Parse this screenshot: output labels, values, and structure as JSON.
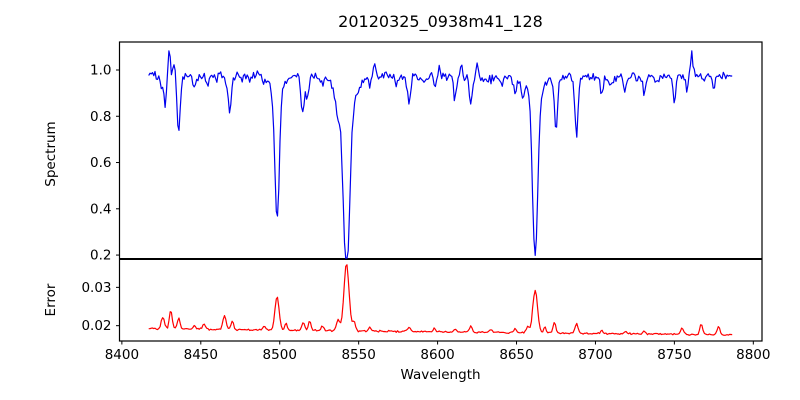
{
  "chart_data": {
    "type": "line",
    "title": "20120325_0938m41_128",
    "xlabel": "Wavelength",
    "xlim": [
      8398.5,
      8805.5
    ],
    "x_ticks": [
      8400,
      8450,
      8500,
      8550,
      8600,
      8650,
      8700,
      8750,
      8800
    ],
    "x_tick_labels": [
      "8400",
      "8450",
      "8500",
      "8550",
      "8600",
      "8650",
      "8700",
      "8750",
      "8800"
    ],
    "wavelength_range": [
      8417,
      8787
    ],
    "background_color": "#ffffff",
    "axis_color": "#000000",
    "grid": false,
    "legend": "none",
    "panels": [
      {
        "ylabel": "Spectrum",
        "line_color": "#0000ee",
        "ylim": [
          0.183,
          1.121
        ],
        "y_ticks": [
          1.0,
          0.8,
          0.6,
          0.4,
          0.2
        ],
        "y_tick_labels": [
          "1.0",
          "0.8",
          "0.6",
          "0.4",
          "0.2"
        ],
        "continuum": 0.972,
        "noise_amplitude": 0.024,
        "description": "Normalized stellar spectrum with Ca II triplet absorption lines at 8498, 8542, 8662",
        "absorption_features": [
          {
            "wl": 8425.0,
            "value": 0.91,
            "sigma": 0.8
          },
          {
            "wl": 8427.5,
            "value": 0.84,
            "sigma": 0.9
          },
          {
            "wl": 8436.0,
            "value": 0.72,
            "sigma": 1.0
          },
          {
            "wl": 8446.0,
            "value": 0.92,
            "sigma": 0.9
          },
          {
            "wl": 8454.0,
            "value": 0.93,
            "sigma": 0.9
          },
          {
            "wl": 8460.0,
            "value": 0.95,
            "sigma": 0.8
          },
          {
            "wl": 8466.0,
            "value": 0.92,
            "sigma": 0.8
          },
          {
            "wl": 8468.5,
            "value": 0.82,
            "sigma": 0.9
          },
          {
            "wl": 8476.0,
            "value": 0.95,
            "sigma": 0.8
          },
          {
            "wl": 8481.0,
            "value": 0.95,
            "sigma": 0.8
          },
          {
            "wl": 8490.0,
            "value": 0.94,
            "sigma": 0.8
          },
          {
            "wl": 8498.3,
            "value": 0.44,
            "sigma": 1.4
          },
          {
            "wl": 8498.3,
            "value": 0.89,
            "sigma": 4.0
          },
          {
            "wl": 8514.5,
            "value": 0.8,
            "sigma": 1.0
          },
          {
            "wl": 8517.5,
            "value": 0.86,
            "sigma": 0.8
          },
          {
            "wl": 8527.0,
            "value": 0.94,
            "sigma": 0.9
          },
          {
            "wl": 8536.5,
            "value": 0.88,
            "sigma": 1.2
          },
          {
            "wl": 8542.3,
            "value": 0.23,
            "sigma": 2.0
          },
          {
            "wl": 8542.3,
            "value": 0.85,
            "sigma": 6.0
          },
          {
            "wl": 8557.0,
            "value": 0.94,
            "sigma": 0.8
          },
          {
            "wl": 8574.0,
            "value": 0.93,
            "sigma": 0.9
          },
          {
            "wl": 8582.0,
            "value": 0.86,
            "sigma": 1.0
          },
          {
            "wl": 8592.0,
            "value": 0.95,
            "sigma": 0.8
          },
          {
            "wl": 8598.0,
            "value": 0.94,
            "sigma": 0.8
          },
          {
            "wl": 8611.0,
            "value": 0.88,
            "sigma": 0.9
          },
          {
            "wl": 8621.0,
            "value": 0.85,
            "sigma": 0.9
          },
          {
            "wl": 8634.0,
            "value": 0.96,
            "sigma": 0.8
          },
          {
            "wl": 8641.0,
            "value": 0.95,
            "sigma": 0.8
          },
          {
            "wl": 8649.0,
            "value": 0.91,
            "sigma": 0.9
          },
          {
            "wl": 8654.0,
            "value": 0.9,
            "sigma": 0.9
          },
          {
            "wl": 8661.8,
            "value": 0.265,
            "sigma": 1.6
          },
          {
            "wl": 8661.8,
            "value": 0.9,
            "sigma": 5.0
          },
          {
            "wl": 8675.0,
            "value": 0.76,
            "sigma": 1.0
          },
          {
            "wl": 8688.0,
            "value": 0.72,
            "sigma": 1.0
          },
          {
            "wl": 8704.0,
            "value": 0.9,
            "sigma": 1.0
          },
          {
            "wl": 8710.0,
            "value": 0.93,
            "sigma": 0.8
          },
          {
            "wl": 8719.0,
            "value": 0.91,
            "sigma": 0.9
          },
          {
            "wl": 8726.0,
            "value": 0.95,
            "sigma": 0.8
          },
          {
            "wl": 8731.0,
            "value": 0.89,
            "sigma": 0.9
          },
          {
            "wl": 8739.0,
            "value": 0.94,
            "sigma": 0.8
          },
          {
            "wl": 8750.0,
            "value": 0.86,
            "sigma": 1.0
          },
          {
            "wl": 8758.0,
            "value": 0.92,
            "sigma": 0.8
          },
          {
            "wl": 8769.0,
            "value": 0.94,
            "sigma": 0.7
          },
          {
            "wl": 8775.0,
            "value": 0.91,
            "sigma": 0.8
          }
        ],
        "emission_spikes": [
          {
            "wl": 8430.0,
            "value": 1.09,
            "sigma": 0.7
          },
          {
            "wl": 8433.0,
            "value": 1.04,
            "sigma": 0.6
          },
          {
            "wl": 8560.0,
            "value": 1.03,
            "sigma": 0.7
          },
          {
            "wl": 8601.0,
            "value": 1.04,
            "sigma": 0.6
          },
          {
            "wl": 8615.0,
            "value": 1.03,
            "sigma": 0.6
          },
          {
            "wl": 8625.0,
            "value": 1.03,
            "sigma": 0.6
          },
          {
            "wl": 8761.0,
            "value": 1.06,
            "sigma": 0.7
          }
        ]
      },
      {
        "ylabel": "Error",
        "line_color": "#ff0000",
        "ylim": [
          0.016,
          0.0374
        ],
        "y_ticks": [
          0.03,
          0.02
        ],
        "y_tick_labels": [
          "0.03",
          "0.02"
        ],
        "baseline_start": 0.0192,
        "baseline_end": 0.0176,
        "baseline_ref": 0.019,
        "noise_amplitude": 0.00028,
        "description": "Error spectrum; peaks coincide with deep absorption lines",
        "peaks": [
          {
            "wl": 8426.0,
            "value": 0.0222,
            "sigma": 1.0
          },
          {
            "wl": 8431.0,
            "value": 0.024,
            "sigma": 0.9
          },
          {
            "wl": 8436.0,
            "value": 0.0218,
            "sigma": 0.9
          },
          {
            "wl": 8446.0,
            "value": 0.02,
            "sigma": 0.8
          },
          {
            "wl": 8452.0,
            "value": 0.0206,
            "sigma": 0.9
          },
          {
            "wl": 8465.0,
            "value": 0.0228,
            "sigma": 1.0
          },
          {
            "wl": 8470.0,
            "value": 0.0214,
            "sigma": 0.8
          },
          {
            "wl": 8490.0,
            "value": 0.02,
            "sigma": 0.8
          },
          {
            "wl": 8498.3,
            "value": 0.0277,
            "sigma": 1.3
          },
          {
            "wl": 8504.0,
            "value": 0.0207,
            "sigma": 0.8
          },
          {
            "wl": 8515.0,
            "value": 0.021,
            "sigma": 1.0
          },
          {
            "wl": 8519.0,
            "value": 0.0216,
            "sigma": 0.8
          },
          {
            "wl": 8527.0,
            "value": 0.0202,
            "sigma": 0.8
          },
          {
            "wl": 8537.0,
            "value": 0.022,
            "sigma": 1.0
          },
          {
            "wl": 8542.3,
            "value": 0.0365,
            "sigma": 1.6
          },
          {
            "wl": 8547.0,
            "value": 0.0215,
            "sigma": 0.9
          },
          {
            "wl": 8557.0,
            "value": 0.02,
            "sigma": 0.8
          },
          {
            "wl": 8582.0,
            "value": 0.02,
            "sigma": 0.9
          },
          {
            "wl": 8598.0,
            "value": 0.0199,
            "sigma": 0.8
          },
          {
            "wl": 8611.0,
            "value": 0.0197,
            "sigma": 0.8
          },
          {
            "wl": 8621.0,
            "value": 0.0206,
            "sigma": 0.9
          },
          {
            "wl": 8634.0,
            "value": 0.0198,
            "sigma": 0.8
          },
          {
            "wl": 8649.0,
            "value": 0.02,
            "sigma": 0.8
          },
          {
            "wl": 8657.0,
            "value": 0.0206,
            "sigma": 0.9
          },
          {
            "wl": 8661.8,
            "value": 0.0302,
            "sigma": 1.5
          },
          {
            "wl": 8668.0,
            "value": 0.0205,
            "sigma": 0.8
          },
          {
            "wl": 8674.0,
            "value": 0.0216,
            "sigma": 0.9
          },
          {
            "wl": 8688.0,
            "value": 0.0216,
            "sigma": 0.9
          },
          {
            "wl": 8704.0,
            "value": 0.0198,
            "sigma": 0.8
          },
          {
            "wl": 8719.0,
            "value": 0.0196,
            "sigma": 0.8
          },
          {
            "wl": 8731.0,
            "value": 0.0197,
            "sigma": 0.8
          },
          {
            "wl": 8755.0,
            "value": 0.0205,
            "sigma": 0.9
          },
          {
            "wl": 8767.0,
            "value": 0.0216,
            "sigma": 0.9
          },
          {
            "wl": 8778.0,
            "value": 0.0211,
            "sigma": 0.9
          }
        ]
      }
    ],
    "noise_seed": 20120325
  }
}
